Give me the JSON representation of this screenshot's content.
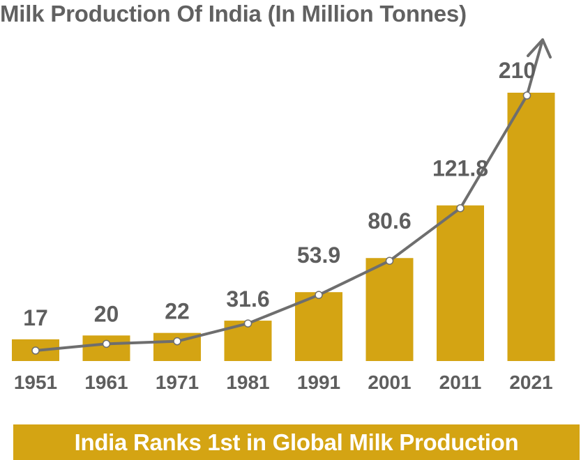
{
  "colors": {
    "bar": "#d4a413",
    "trend_line": "#6e6e6e",
    "marker_fill": "#ffffff",
    "text": "#5e5e5e",
    "banner_bg": "#d4a413",
    "banner_text": "#ffffff"
  },
  "chart_data": {
    "type": "bar",
    "title": "Milk Production Of India (In Million Tonnes)",
    "categories": [
      "1951",
      "1961",
      "1971",
      "1981",
      "1991",
      "2001",
      "2011",
      "2021"
    ],
    "values": [
      17,
      20,
      22,
      31.6,
      53.9,
      80.6,
      121.8,
      210
    ],
    "value_labels": [
      "17",
      "20",
      "22",
      "31.6",
      "53.9",
      "80.6",
      "121.8",
      "210"
    ],
    "ylim": [
      0,
      210
    ],
    "overlay": "trend line with markers and arrowhead",
    "grid": false,
    "legend": "none"
  },
  "footer": {
    "text": "India Ranks 1st in Global Milk Production"
  }
}
